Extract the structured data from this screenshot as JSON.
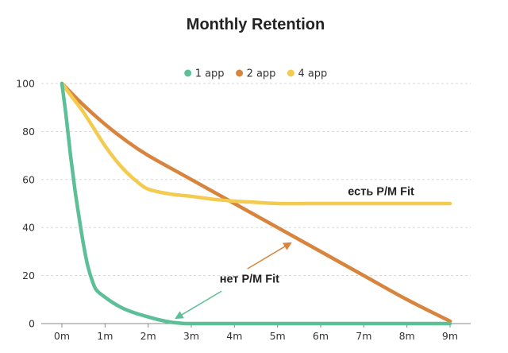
{
  "chart_data": {
    "type": "line",
    "title": "Monthly Retention",
    "xlabel": "",
    "ylabel": "",
    "categories": [
      "0m",
      "1m",
      "2m",
      "3m",
      "4m",
      "5m",
      "6m",
      "7m",
      "8m",
      "9m"
    ],
    "x": [
      0,
      1,
      2,
      3,
      4,
      5,
      6,
      7,
      8,
      9
    ],
    "ylim": [
      0,
      100
    ],
    "yticks": [
      0,
      20,
      40,
      60,
      80,
      100
    ],
    "grid": true,
    "legend_position": "top-center",
    "series": [
      {
        "name": "1 app",
        "color": "#5cbf97",
        "points": [
          [
            0,
            100
          ],
          [
            0.1,
            86
          ],
          [
            0.2,
            70
          ],
          [
            0.3,
            56
          ],
          [
            0.4,
            44
          ],
          [
            0.5,
            33
          ],
          [
            0.6,
            24
          ],
          [
            0.7,
            18
          ],
          [
            0.8,
            14
          ],
          [
            1,
            11
          ],
          [
            1.2,
            8.5
          ],
          [
            1.4,
            6.5
          ],
          [
            1.6,
            5
          ],
          [
            1.8,
            3.8
          ],
          [
            2,
            2.8
          ],
          [
            2.2,
            1.8
          ],
          [
            2.4,
            1
          ],
          [
            2.6,
            0.4
          ],
          [
            2.8,
            0.1
          ],
          [
            3,
            0
          ],
          [
            4,
            0
          ],
          [
            5,
            0
          ],
          [
            6,
            0
          ],
          [
            7,
            0
          ],
          [
            8,
            0
          ],
          [
            9,
            0
          ]
        ]
      },
      {
        "name": "2 app",
        "color": "#d8843d",
        "points": [
          [
            0,
            100
          ],
          [
            0.5,
            91
          ],
          [
            1,
            83
          ],
          [
            1.5,
            76
          ],
          [
            2,
            70
          ],
          [
            3,
            60
          ],
          [
            4,
            50
          ],
          [
            5,
            40
          ],
          [
            6,
            30
          ],
          [
            7,
            20
          ],
          [
            8,
            10
          ],
          [
            9,
            1
          ]
        ]
      },
      {
        "name": "4 app",
        "color": "#f2cb4f",
        "points": [
          [
            0,
            100
          ],
          [
            0.25,
            94
          ],
          [
            0.5,
            88
          ],
          [
            0.75,
            81
          ],
          [
            1,
            74
          ],
          [
            1.25,
            68
          ],
          [
            1.5,
            63
          ],
          [
            1.75,
            59
          ],
          [
            2,
            56
          ],
          [
            2.5,
            54
          ],
          [
            3,
            53
          ],
          [
            3.5,
            51.8
          ],
          [
            4,
            51
          ],
          [
            4.5,
            50.5
          ],
          [
            5,
            50
          ],
          [
            6,
            50
          ],
          [
            7,
            50
          ],
          [
            8,
            50
          ],
          [
            9,
            50
          ]
        ]
      }
    ],
    "annotations": [
      {
        "text": "есть P/M Fit",
        "x": 7.4,
        "y": 53.5,
        "color": "#222222"
      },
      {
        "text": "нет P/M Fit",
        "x": 4.35,
        "y": 17,
        "color": "#222222",
        "arrows": [
          {
            "color": "#d8843d",
            "from": [
              4.3,
              22.8
            ],
            "to": [
              5.3,
              33.5
            ]
          },
          {
            "color": "#5cbf97",
            "from": [
              3.7,
              13.5
            ],
            "to": [
              2.65,
              2.3
            ]
          }
        ]
      }
    ]
  }
}
